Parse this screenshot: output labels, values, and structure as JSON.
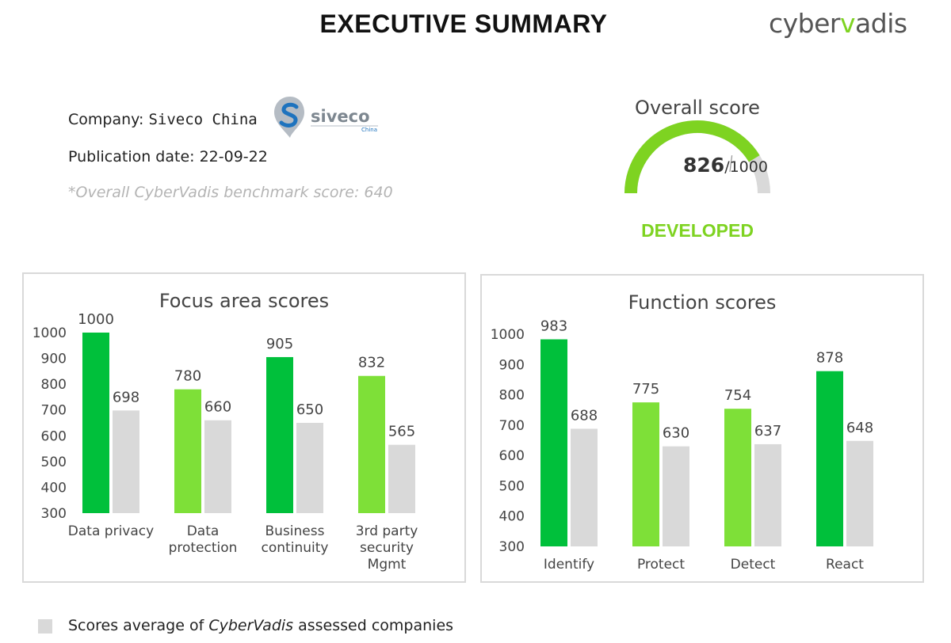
{
  "header": {
    "title": "EXECUTIVE SUMMARY",
    "brand_left": "cyber",
    "brand_v": "v",
    "brand_right": "adis"
  },
  "company": {
    "label": "Company: ",
    "name": "Siveco China",
    "logo_text": "siveco",
    "logo_sub": "China",
    "publication": "Publication date: 22-09-22",
    "benchmark": "*Overall CyberVadis benchmark score: 640"
  },
  "gauge": {
    "title": "Overall score",
    "score": "826",
    "max": "/1000",
    "score_value": 826,
    "max_value": 1000,
    "rating": "DEVELOPED",
    "fill_color": "#7ed321",
    "track_color": "#d9d9d9"
  },
  "chart_data": [
    {
      "type": "bar",
      "title": "Focus area scores",
      "categories": [
        [
          "Data privacy"
        ],
        [
          "Data",
          "protection"
        ],
        [
          "Business",
          "continuity"
        ],
        [
          "3rd party",
          "security",
          "Mgmt"
        ]
      ],
      "series": [
        {
          "values": [
            1000,
            780,
            905,
            832
          ],
          "colors": [
            "#00c03b",
            "#7ee038",
            "#00c03b",
            "#7ee038"
          ]
        },
        {
          "values": [
            698,
            660,
            650,
            565
          ],
          "colors": [
            "#d9d9d9",
            "#d9d9d9",
            "#d9d9d9",
            "#d9d9d9"
          ]
        }
      ],
      "yticks": [
        1000,
        900,
        800,
        700,
        600,
        500,
        400,
        300
      ],
      "ylim": [
        300,
        1000
      ],
      "grid": false
    },
    {
      "type": "bar",
      "title": "Function scores",
      "categories": [
        [
          "Identify"
        ],
        [
          "Protect"
        ],
        [
          "Detect"
        ],
        [
          "React"
        ]
      ],
      "series": [
        {
          "values": [
            983,
            775,
            754,
            878
          ],
          "colors": [
            "#00c03b",
            "#7ee038",
            "#7ee038",
            "#00c03b"
          ]
        },
        {
          "values": [
            688,
            630,
            637,
            648
          ],
          "colors": [
            "#d9d9d9",
            "#d9d9d9",
            "#d9d9d9",
            "#d9d9d9"
          ]
        }
      ],
      "yticks": [
        1000,
        900,
        800,
        700,
        600,
        500,
        400,
        300
      ],
      "ylim": [
        300,
        1000
      ],
      "grid": false
    }
  ],
  "legend": {
    "prefix": "Scores average of ",
    "brand": "CyberVadis",
    "suffix": " assessed companies",
    "color": "#d9d9d9"
  }
}
